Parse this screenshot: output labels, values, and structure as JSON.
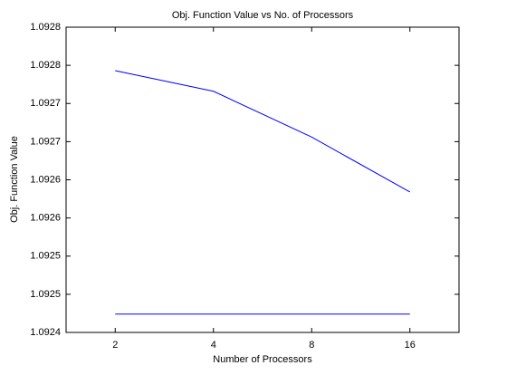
{
  "chart_data": {
    "type": "line",
    "title": "Obj. Function Value vs No. of Processors",
    "xlabel": "Number of Processors",
    "ylabel": "Obj. Function Value",
    "categories": [
      "2",
      "4",
      "8",
      "16"
    ],
    "series": [
      {
        "color": "#0000ff",
        "values": [
          1.092743,
          1.092716,
          1.092656,
          1.092584
        ]
      },
      {
        "color": "#0000ff",
        "values": [
          1.092424,
          1.092424,
          1.092424,
          1.092424
        ]
      }
    ],
    "ylim": [
      1.0924,
      1.0928
    ],
    "yticks": [
      {
        "value": 1.0924,
        "label": "1.0924"
      },
      {
        "value": 1.09245,
        "label": "1.0925"
      },
      {
        "value": 1.0925,
        "label": "1.0925"
      },
      {
        "value": 1.09255,
        "label": "1.0926"
      },
      {
        "value": 1.0926,
        "label": "1.0926"
      },
      {
        "value": 1.09265,
        "label": "1.0927"
      },
      {
        "value": 1.0927,
        "label": "1.0927"
      },
      {
        "value": 1.09275,
        "label": "1.0928"
      },
      {
        "value": 1.0928,
        "label": "1.0928"
      }
    ],
    "grid": false
  }
}
